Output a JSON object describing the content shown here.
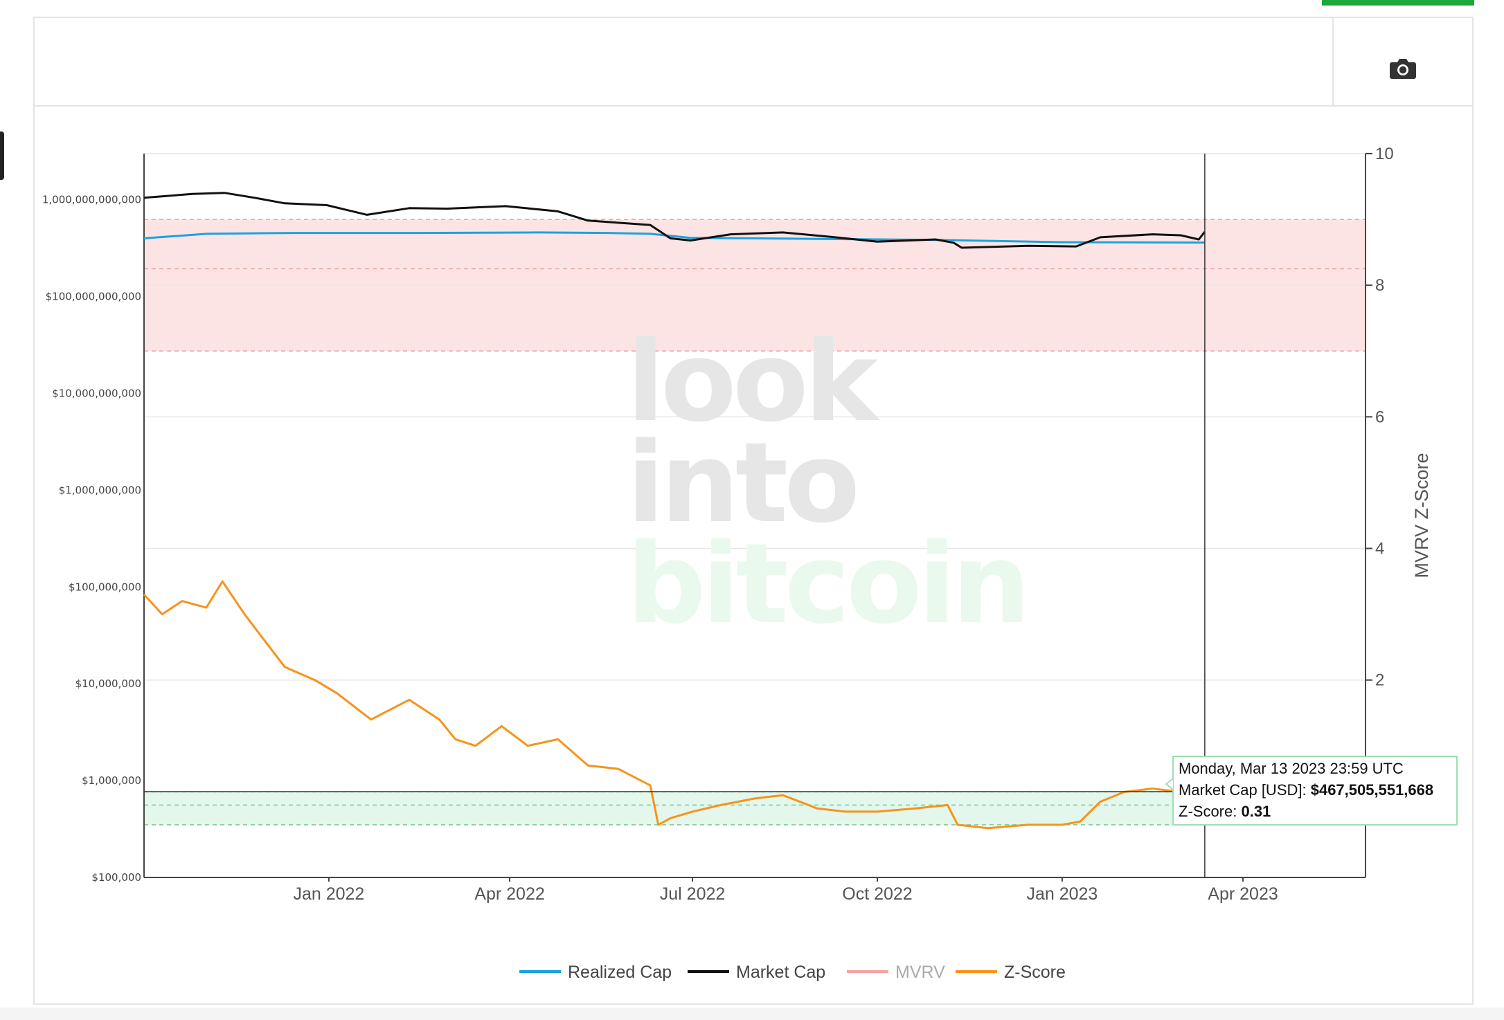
{
  "colors": {
    "realized": "#1aa3e0",
    "market": "#111111",
    "mvrv": "#f4a3a3",
    "zscore": "#f7931a",
    "red_band": "#fde4e4",
    "green_band": "#e3f7ec",
    "accent": "#1fa83a"
  },
  "toolbar": {
    "camera_icon": "camera-icon"
  },
  "watermark": {
    "line1": "look",
    "line2": "into",
    "line3": "bitcoin"
  },
  "tooltip": {
    "date": "Monday, Mar 13 2023 23:59 UTC",
    "mcap_label": "Market Cap [USD]: ",
    "mcap_value": "$467,505,551,668",
    "z_label": "Z-Score: ",
    "z_value": "0.31"
  },
  "chart_data": {
    "type": "line",
    "title": "",
    "x_range": [
      "2021-10-01",
      "2023-06-01"
    ],
    "x_ticks": [
      {
        "date": "2022-01-01",
        "label": "Jan 2022"
      },
      {
        "date": "2022-04-01",
        "label": "Apr 2022"
      },
      {
        "date": "2022-07-01",
        "label": "Jul 2022"
      },
      {
        "date": "2022-10-01",
        "label": "Oct 2022"
      },
      {
        "date": "2023-01-01",
        "label": "Jan 2023"
      },
      {
        "date": "2023-04-01",
        "label": "Apr 2023"
      }
    ],
    "y_left": {
      "scale": "log",
      "range": [
        100000,
        3000000000000
      ],
      "ticks": [
        {
          "value": 1000000000000.0,
          "label": "1,000,000,000,000"
        },
        {
          "value": 100000000000.0,
          "label": "$100,000,000,000"
        },
        {
          "value": 10000000000.0,
          "label": "$10,000,000,000"
        },
        {
          "value": 1000000000.0,
          "label": "$1,000,000,000"
        },
        {
          "value": 100000000.0,
          "label": "$100,000,000"
        },
        {
          "value": 10000000.0,
          "label": "$10,000,000"
        },
        {
          "value": 1000000.0,
          "label": "$1,000,000"
        },
        {
          "value": 100000.0,
          "label": "$100,000"
        }
      ]
    },
    "y_right": {
      "scale": "linear",
      "range": [
        -1,
        10
      ],
      "label": "MVRV Z-Score",
      "ticks": [
        {
          "value": 10,
          "label": "10"
        },
        {
          "value": 8,
          "label": "8"
        },
        {
          "value": 6,
          "label": "6"
        },
        {
          "value": 4,
          "label": "4"
        },
        {
          "value": 2,
          "label": "2"
        }
      ]
    },
    "bands": {
      "red": {
        "from": 7,
        "to": 9,
        "mid_line": 8.25
      },
      "green": {
        "from": -0.2,
        "to": 0.3,
        "mid_line": 0.1
      }
    },
    "hover_date": "2023-03-13",
    "hover_value": 467505551668,
    "legend": [
      "Realized Cap",
      "Market Cap",
      "MVRV",
      "Z-Score"
    ],
    "series": [
      {
        "name": "Realized Cap",
        "axis": "left",
        "points": [
          [
            "2021-10-01",
            400000000000.0
          ],
          [
            "2021-11-01",
            445000000000.0
          ],
          [
            "2021-12-15",
            455000000000.0
          ],
          [
            "2022-02-15",
            455000000000.0
          ],
          [
            "2022-04-15",
            460000000000.0
          ],
          [
            "2022-05-20",
            455000000000.0
          ],
          [
            "2022-06-10",
            445000000000.0
          ],
          [
            "2022-06-30",
            405000000000.0
          ],
          [
            "2022-09-01",
            395000000000.0
          ],
          [
            "2022-11-01",
            385000000000.0
          ],
          [
            "2023-01-01",
            365000000000.0
          ],
          [
            "2023-03-13",
            362000000000.0
          ]
        ]
      },
      {
        "name": "Market Cap",
        "axis": "left",
        "points": [
          [
            "2021-10-01",
            1050000000000.0
          ],
          [
            "2021-10-25",
            1150000000000.0
          ],
          [
            "2021-11-10",
            1180000000000.0
          ],
          [
            "2021-11-25",
            1050000000000.0
          ],
          [
            "2021-12-10",
            920000000000.0
          ],
          [
            "2021-12-31",
            880000000000.0
          ],
          [
            "2022-01-20",
            700000000000.0
          ],
          [
            "2022-02-10",
            820000000000.0
          ],
          [
            "2022-03-01",
            810000000000.0
          ],
          [
            "2022-03-30",
            860000000000.0
          ],
          [
            "2022-04-25",
            760000000000.0
          ],
          [
            "2022-05-10",
            610000000000.0
          ],
          [
            "2022-06-10",
            550000000000.0
          ],
          [
            "2022-06-20",
            400000000000.0
          ],
          [
            "2022-06-30",
            380000000000.0
          ],
          [
            "2022-07-20",
            440000000000.0
          ],
          [
            "2022-08-15",
            460000000000.0
          ],
          [
            "2022-09-10",
            410000000000.0
          ],
          [
            "2022-10-01",
            370000000000.0
          ],
          [
            "2022-10-30",
            390000000000.0
          ],
          [
            "2022-11-08",
            360000000000.0
          ],
          [
            "2022-11-12",
            320000000000.0
          ],
          [
            "2022-12-15",
            335000000000.0
          ],
          [
            "2023-01-08",
            330000000000.0
          ],
          [
            "2023-01-20",
            410000000000.0
          ],
          [
            "2023-02-15",
            440000000000.0
          ],
          [
            "2023-03-01",
            430000000000.0
          ],
          [
            "2023-03-10",
            390000000000.0
          ],
          [
            "2023-03-13",
            467500000000.0
          ]
        ]
      },
      {
        "name": "Z-Score",
        "axis": "right",
        "points": [
          [
            "2021-10-01",
            3.3
          ],
          [
            "2021-10-10",
            3.0
          ],
          [
            "2021-10-20",
            3.2
          ],
          [
            "2021-11-01",
            3.1
          ],
          [
            "2021-11-09",
            3.5
          ],
          [
            "2021-11-20",
            3.0
          ],
          [
            "2021-11-30",
            2.6
          ],
          [
            "2021-12-10",
            2.2
          ],
          [
            "2021-12-25",
            2.0
          ],
          [
            "2022-01-05",
            1.8
          ],
          [
            "2022-01-22",
            1.4
          ],
          [
            "2022-02-10",
            1.7
          ],
          [
            "2022-02-25",
            1.4
          ],
          [
            "2022-03-05",
            1.1
          ],
          [
            "2022-03-15",
            1.0
          ],
          [
            "2022-03-28",
            1.3
          ],
          [
            "2022-04-10",
            1.0
          ],
          [
            "2022-04-25",
            1.1
          ],
          [
            "2022-05-10",
            0.7
          ],
          [
            "2022-05-25",
            0.65
          ],
          [
            "2022-06-10",
            0.4
          ],
          [
            "2022-06-14",
            -0.2
          ],
          [
            "2022-06-20",
            -0.1
          ],
          [
            "2022-07-01",
            0.0
          ],
          [
            "2022-07-15",
            0.1
          ],
          [
            "2022-08-01",
            0.2
          ],
          [
            "2022-08-15",
            0.25
          ],
          [
            "2022-09-01",
            0.05
          ],
          [
            "2022-09-15",
            0.0
          ],
          [
            "2022-10-01",
            0.0
          ],
          [
            "2022-10-20",
            0.05
          ],
          [
            "2022-11-05",
            0.1
          ],
          [
            "2022-11-10",
            -0.2
          ],
          [
            "2022-11-25",
            -0.25
          ],
          [
            "2022-12-15",
            -0.2
          ],
          [
            "2023-01-01",
            -0.2
          ],
          [
            "2023-01-10",
            -0.15
          ],
          [
            "2023-01-20",
            0.15
          ],
          [
            "2023-02-01",
            0.3
          ],
          [
            "2023-02-15",
            0.35
          ],
          [
            "2023-03-01",
            0.3
          ],
          [
            "2023-03-10",
            0.1
          ],
          [
            "2023-03-13",
            0.31
          ]
        ]
      }
    ]
  }
}
